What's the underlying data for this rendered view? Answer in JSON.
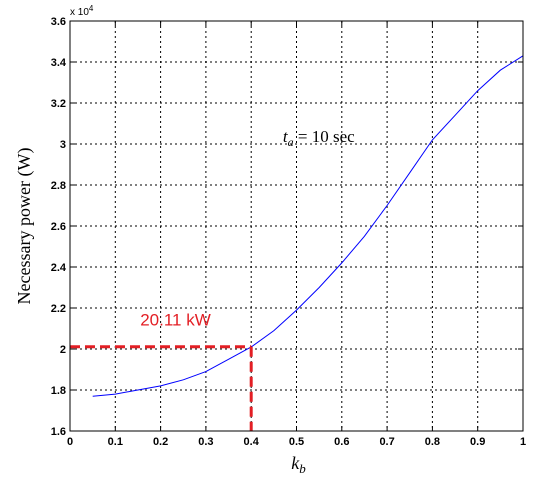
{
  "chart_data": {
    "type": "line",
    "xlabel": "k_b",
    "xlabel_main": "k",
    "xlabel_sub": "b",
    "ylabel": "Necessary power (W)",
    "y_multiplier": "x 10",
    "y_multiplier_exp": "4",
    "xlim": [
      0,
      1
    ],
    "ylim": [
      1.6,
      3.6
    ],
    "grid": true,
    "x_ticks": [
      0,
      0.1,
      0.2,
      0.3,
      0.4,
      0.5,
      0.6,
      0.7,
      0.8,
      0.9,
      1
    ],
    "x_tick_labels": [
      "0",
      "0.1",
      "0.2",
      "0.3",
      "0.4",
      "0.5",
      "0.6",
      "0.7",
      "0.8",
      "0.9",
      "1"
    ],
    "y_ticks": [
      1.6,
      1.8,
      2,
      2.2,
      2.4,
      2.6,
      2.8,
      3,
      3.2,
      3.4,
      3.6
    ],
    "y_tick_labels": [
      "1.6",
      "1.8",
      "2",
      "2.2",
      "2.4",
      "2.6",
      "2.8",
      "3",
      "3.2",
      "3.4",
      "3.6"
    ],
    "series": [
      {
        "color": "#0000ff",
        "x": [
          0.05,
          0.1,
          0.15,
          0.2,
          0.25,
          0.3,
          0.35,
          0.4,
          0.45,
          0.5,
          0.55,
          0.6,
          0.65,
          0.7,
          0.75,
          0.8,
          0.85,
          0.9,
          0.95,
          1.0
        ],
        "y": [
          1.77,
          1.78,
          1.8,
          1.82,
          1.85,
          1.89,
          1.95,
          2.01,
          2.09,
          2.19,
          2.3,
          2.42,
          2.55,
          2.7,
          2.86,
          3.02,
          3.14,
          3.26,
          3.36,
          3.43
        ]
      }
    ],
    "annotation": {
      "prefix": "t",
      "subscript": "a",
      "suffix": " = 10 sec",
      "x": 0.47,
      "y": 3.04
    },
    "callout": {
      "text": "20.11 kW",
      "color": "#e31e24",
      "point_x": 0.4,
      "point_y": 2.011,
      "text_x": 0.155,
      "text_y": 2.145
    }
  }
}
